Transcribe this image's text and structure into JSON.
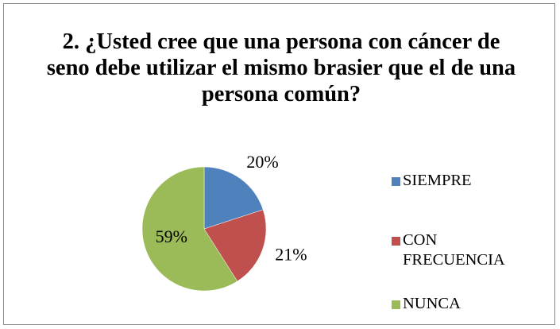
{
  "chart_data": {
    "type": "pie",
    "title": "2. ¿Usted cree que una persona con cáncer de seno debe utilizar el mismo brasier que el de una persona común?",
    "categories": [
      "SIEMPRE",
      "CON FRECUENCIA",
      "NUNCA"
    ],
    "values": [
      20,
      21,
      59
    ],
    "value_labels": [
      "20%",
      "21%",
      "59%"
    ],
    "colors": [
      "#4f81bd",
      "#c0504d",
      "#9bbb59"
    ],
    "legend": "right"
  }
}
